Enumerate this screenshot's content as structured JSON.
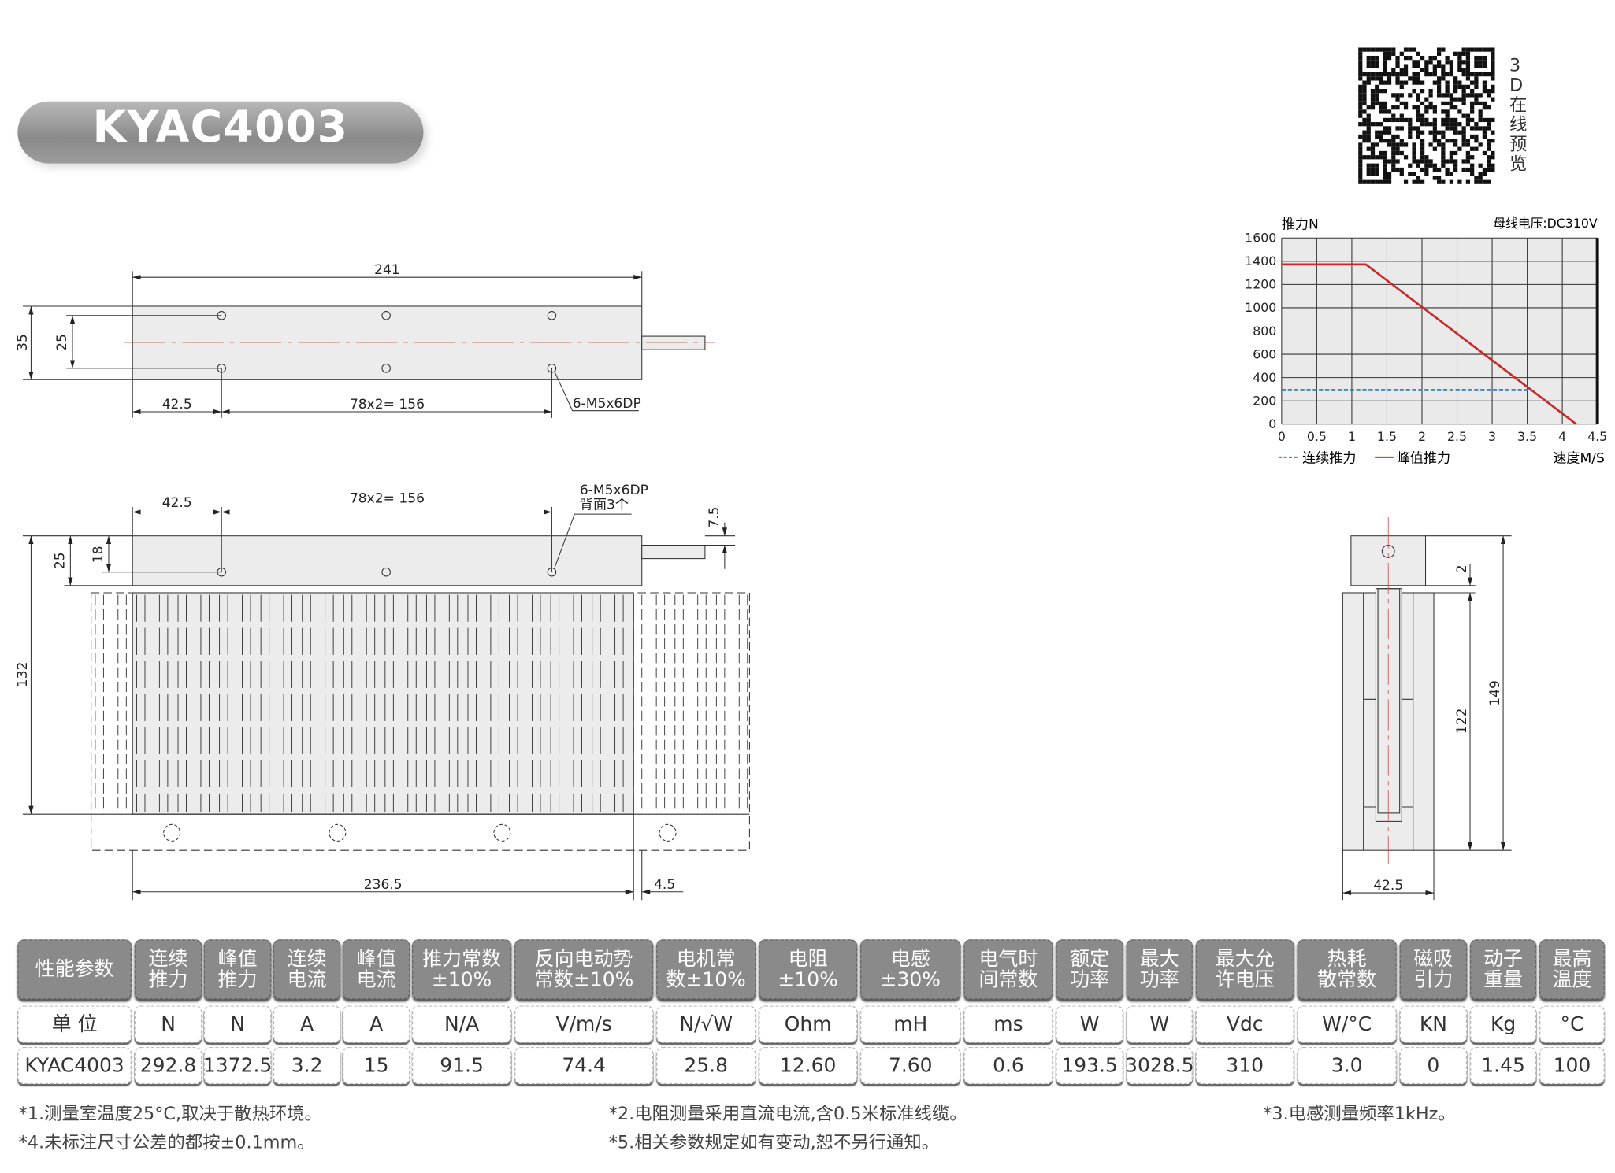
{
  "title": "KYAC4003",
  "qr": {
    "label": "3D在线预览"
  },
  "drawing": {
    "top_view": {
      "length": "241",
      "height_outer": "35",
      "height_inner": "25",
      "offset": "42.5",
      "pitch": "78x2= 156",
      "holes": "6-M5x6DP"
    },
    "front_view": {
      "offset": "42.5",
      "pitch": "78x2= 156",
      "holes_line1": "6-M5x6DP",
      "holes_line2": "背面3个",
      "shaft_offset": "7.5",
      "height_total": "132",
      "height_mover": "25",
      "hole_height": "18",
      "stator_length": "236.5",
      "gap": "4.5"
    },
    "side_view": {
      "gap": "2",
      "stator_height": "122",
      "total_height": "149",
      "width": "42.5"
    }
  },
  "chart_data": {
    "type": "line",
    "title": "",
    "annotation": "母线电压:DC310V",
    "ylabel": "推力N",
    "xlabel": "速度M/S",
    "xlim": [
      0,
      4.5
    ],
    "ylim": [
      0,
      1600
    ],
    "xticks": [
      "0",
      "0.5",
      "1",
      "1.5",
      "2",
      "2.5",
      "3",
      "3.5",
      "4",
      "4.5"
    ],
    "yticks": [
      "0",
      "200",
      "400",
      "600",
      "800",
      "1000",
      "1200",
      "1400",
      "1600"
    ],
    "grid": true,
    "legend_position": "bottom-left",
    "series": [
      {
        "name": "连续推力",
        "style": "dashed",
        "color": "#1a7fc4",
        "x": [
          0,
          3.55
        ],
        "y": [
          292.8,
          292.8
        ]
      },
      {
        "name": "峰值推力",
        "style": "solid",
        "color": "#c8282a",
        "x": [
          0,
          1.2,
          4.2
        ],
        "y": [
          1372.5,
          1372.5,
          0
        ]
      }
    ]
  },
  "spec_table": {
    "headers": [
      "性能参数",
      "连续\n推力",
      "峰值\n推力",
      "连续\n电流",
      "峰值\n电流",
      "推力常数\n±10%",
      "反向电动势\n常数±10%",
      "电机常\n数±10%",
      "电阻\n±10%",
      "电感\n±30%",
      "电气时\n间常数",
      "额定\n功率",
      "最大\n功率",
      "最大允\n许电压",
      "热耗\n散常数",
      "磁吸\n引力",
      "动子\n重量",
      "最高\n温度"
    ],
    "units": [
      "单 位",
      "N",
      "N",
      "A",
      "A",
      "N/A",
      "V/m/s",
      "N/√W",
      "Ohm",
      "mH",
      "ms",
      "W",
      "W",
      "Vdc",
      "W/°C",
      "KN",
      "Kg",
      "°C"
    ],
    "values": [
      "KYAC4003",
      "292.8",
      "1372.5",
      "3.2",
      "15",
      "91.5",
      "74.4",
      "25.8",
      "12.60",
      "7.60",
      "0.6",
      "193.5",
      "3028.5",
      "310",
      "3.0",
      "0",
      "1.45",
      "100"
    ]
  },
  "notes": [
    "*1.测量室温度25°C,取决于散热环境。",
    "*2.电阻测量采用直流电流,含0.5米标准线缆。",
    "*3.电感测量频率1kHz。",
    "*4.未标注尺寸公差的都按±0.1mm。",
    "*5.相关参数规定如有变动,恕不另行通知。"
  ],
  "colors": {
    "header_bg": "#8a8a8a",
    "body_fill": "#ececec",
    "peak": "#c8282a",
    "continuous": "#1a7fc4"
  }
}
